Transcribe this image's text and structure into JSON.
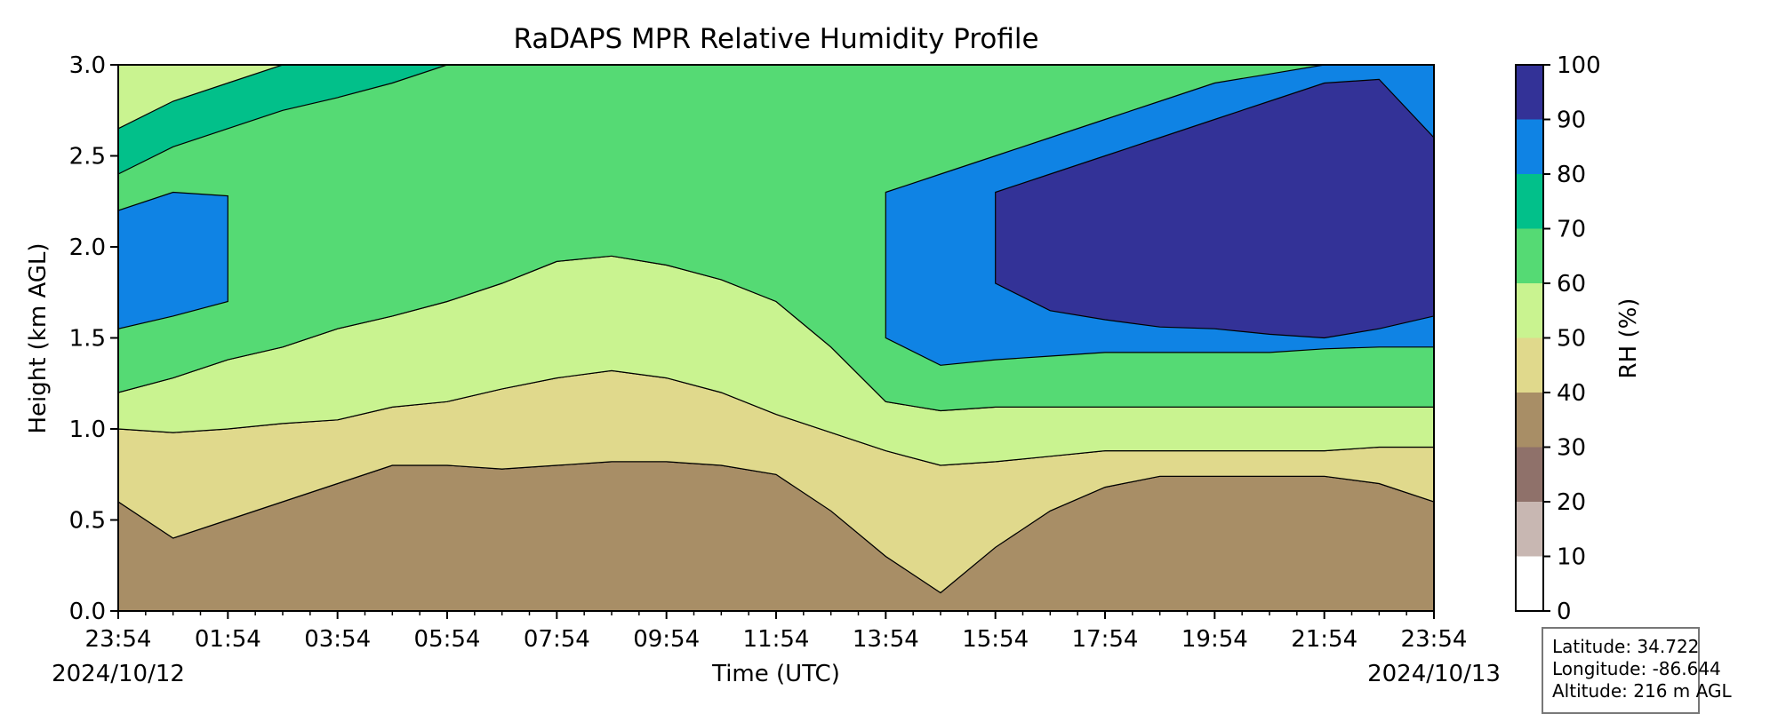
{
  "chart_data": {
    "type": "heatmap",
    "subtype": "filled-contour",
    "title": "RaDAPS MPR Relative Humidity Profile",
    "xlabel": "Time (UTC)",
    "ylabel": "Height (km AGL)",
    "x_tick_labels": [
      "23:54",
      "01:54",
      "03:54",
      "05:54",
      "07:54",
      "09:54",
      "11:54",
      "13:54",
      "15:54",
      "17:54",
      "19:54",
      "21:54",
      "23:54"
    ],
    "x_start_date": "2024/10/12",
    "x_end_date": "2024/10/13",
    "y_tick_labels": [
      "0.0",
      "0.5",
      "1.0",
      "1.5",
      "2.0",
      "2.5",
      "3.0"
    ],
    "ylim": [
      0.0,
      3.0
    ],
    "xlim_hours_since_start": [
      0,
      24
    ],
    "colorbar": {
      "label": "RH (%)",
      "levels": [
        0,
        10,
        20,
        30,
        40,
        50,
        60,
        70,
        80,
        90,
        100
      ],
      "tick_labels": [
        "0",
        "10",
        "20",
        "30",
        "40",
        "50",
        "60",
        "70",
        "80",
        "90",
        "100"
      ],
      "colors": [
        "#ffffff",
        "#c8b7b2",
        "#8f716a",
        "#a88e66",
        "#e0d98c",
        "#c9f390",
        "#55da74",
        "#02c08a",
        "#0f83e4",
        "#333297"
      ]
    },
    "contour_boundaries_km": {
      "hours": [
        0,
        1,
        2,
        3,
        4,
        5,
        6,
        7,
        8,
        9,
        10,
        11,
        12,
        13,
        14,
        15,
        16,
        17,
        18,
        19,
        20,
        21,
        22,
        23,
        24
      ],
      "rh_40": [
        0.6,
        0.4,
        0.5,
        0.6,
        0.7,
        0.8,
        0.8,
        0.78,
        0.8,
        0.82,
        0.82,
        0.8,
        0.75,
        0.55,
        0.3,
        0.1,
        0.35,
        0.55,
        0.68,
        0.74,
        0.74,
        0.74,
        0.74,
        0.7,
        0.6
      ],
      "rh_50": [
        1.0,
        0.98,
        1.0,
        1.03,
        1.05,
        1.12,
        1.15,
        1.22,
        1.28,
        1.32,
        1.28,
        1.2,
        1.08,
        0.98,
        0.88,
        0.8,
        0.82,
        0.85,
        0.88,
        0.88,
        0.88,
        0.88,
        0.88,
        0.9,
        0.9
      ],
      "rh_60": [
        1.2,
        1.28,
        1.38,
        1.45,
        1.55,
        1.62,
        1.7,
        1.8,
        1.92,
        1.95,
        1.9,
        1.82,
        1.7,
        1.45,
        1.15,
        1.1,
        1.12,
        1.12,
        1.12,
        1.12,
        1.12,
        1.12,
        1.12,
        1.12,
        1.12
      ],
      "rh_70": [
        2.4,
        2.55,
        2.65,
        2.75,
        2.82,
        2.9,
        3.0,
        3.0,
        3.0,
        3.0,
        3.0,
        3.0,
        3.0,
        3.0,
        3.0,
        3.0,
        3.0,
        3.0,
        3.0,
        3.0,
        3.0,
        3.0,
        3.0,
        3.0,
        3.0
      ],
      "rh_80_band_lower": [
        1.55,
        1.62,
        1.7,
        null,
        null,
        null,
        null,
        null,
        null,
        null,
        null,
        null,
        null,
        null,
        1.5,
        1.35,
        1.38,
        1.4,
        1.42,
        1.42,
        1.42,
        1.42,
        1.44,
        1.45,
        1.45
      ],
      "rh_80_band_upper": [
        2.2,
        2.3,
        2.28,
        null,
        null,
        null,
        null,
        null,
        null,
        null,
        null,
        null,
        null,
        null,
        2.3,
        2.4,
        2.5,
        2.6,
        2.7,
        2.8,
        2.9,
        2.95,
        3.0,
        3.0,
        3.0
      ],
      "rh_90_band_lower": [
        null,
        null,
        null,
        null,
        null,
        null,
        null,
        null,
        null,
        null,
        null,
        null,
        null,
        null,
        null,
        null,
        1.8,
        1.65,
        1.6,
        1.56,
        1.55,
        1.52,
        1.5,
        1.55,
        1.62
      ],
      "rh_90_band_upper": [
        null,
        null,
        null,
        null,
        null,
        null,
        null,
        null,
        null,
        null,
        null,
        null,
        null,
        null,
        null,
        null,
        2.3,
        2.4,
        2.5,
        2.6,
        2.7,
        2.8,
        2.9,
        2.92,
        2.6
      ]
    }
  },
  "info_box": {
    "latitude": "Latitude: 34.722",
    "longitude": "Longitude: -86.644",
    "altitude": "Altitude: 216 m AGL"
  }
}
